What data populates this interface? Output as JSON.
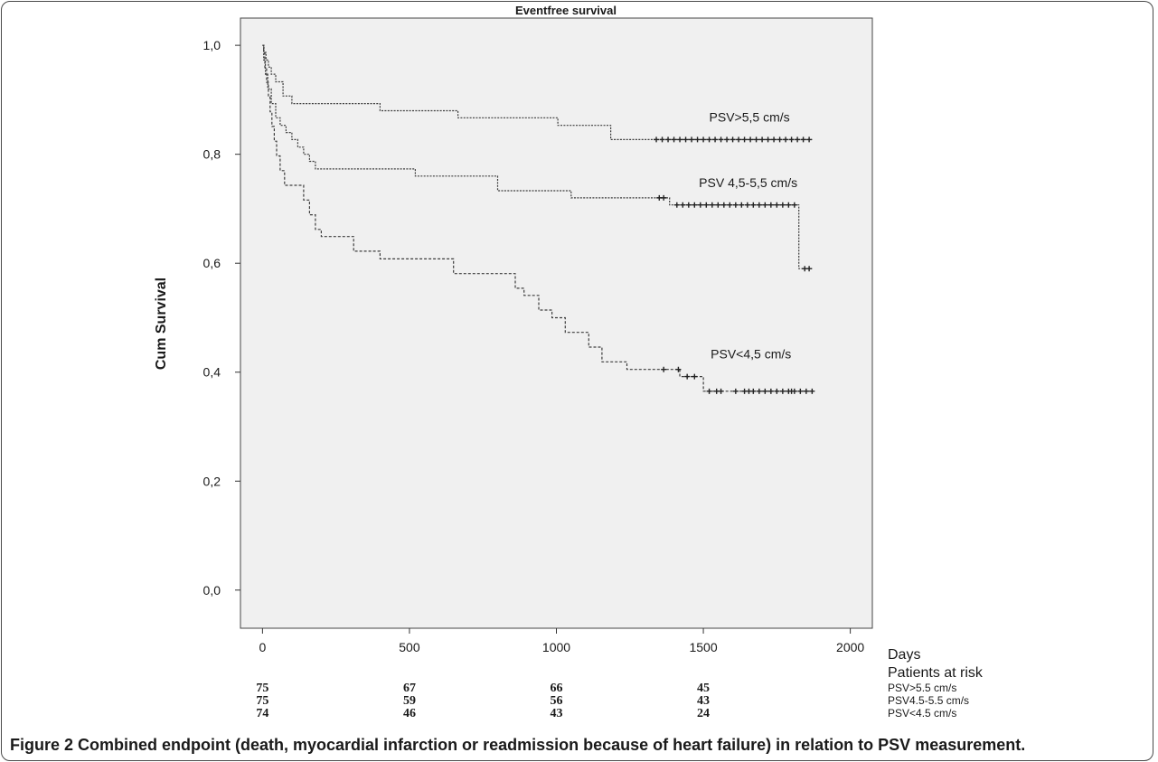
{
  "figure": {
    "label": "Figure 2",
    "caption": "Combined endpoint (death, myocardial infarction or readmission because of heart failure) in relation to PSV measurement."
  },
  "chart_data": {
    "type": "line",
    "title": "Eventfree survival",
    "ylabel": "Cum Survival",
    "xlabel": "Days",
    "xlim": [
      -75,
      2075
    ],
    "ylim": [
      -0.07,
      1.05
    ],
    "xticks": [
      0,
      500,
      1000,
      1500,
      2000
    ],
    "yticks": [
      0.0,
      0.2,
      0.4,
      0.6,
      0.8,
      1.0
    ],
    "ytick_labels": [
      "0,0",
      "0,2",
      "0,4",
      "0,6",
      "0,8",
      "1,0"
    ],
    "grid": false,
    "series": [
      {
        "name": "PSV>5,5 cm/s",
        "steps": [
          [
            0,
            1.0
          ],
          [
            5,
            0.987
          ],
          [
            12,
            0.973
          ],
          [
            20,
            0.96
          ],
          [
            30,
            0.947
          ],
          [
            45,
            0.933
          ],
          [
            70,
            0.907
          ],
          [
            100,
            0.893
          ],
          [
            400,
            0.88
          ],
          [
            665,
            0.867
          ],
          [
            1005,
            0.853
          ],
          [
            1185,
            0.827
          ],
          [
            1870,
            0.827
          ]
        ],
        "censored": [
          1340,
          1360,
          1380,
          1400,
          1420,
          1440,
          1460,
          1480,
          1500,
          1520,
          1540,
          1560,
          1580,
          1600,
          1620,
          1640,
          1660,
          1680,
          1700,
          1720,
          1740,
          1760,
          1780,
          1800,
          1820,
          1840,
          1860
        ]
      },
      {
        "name": "PSV 4,5-5,5 cm/s",
        "steps": [
          [
            0,
            1.0
          ],
          [
            4,
            0.973
          ],
          [
            10,
            0.947
          ],
          [
            18,
            0.92
          ],
          [
            30,
            0.893
          ],
          [
            45,
            0.867
          ],
          [
            60,
            0.853
          ],
          [
            80,
            0.84
          ],
          [
            100,
            0.827
          ],
          [
            120,
            0.813
          ],
          [
            140,
            0.8
          ],
          [
            160,
            0.787
          ],
          [
            180,
            0.773
          ],
          [
            520,
            0.76
          ],
          [
            800,
            0.733
          ],
          [
            1050,
            0.72
          ],
          [
            1385,
            0.707
          ],
          [
            1825,
            0.59
          ],
          [
            1870,
            0.59
          ]
        ],
        "censored": [
          1350,
          1365,
          1410,
          1430,
          1450,
          1470,
          1490,
          1510,
          1530,
          1550,
          1570,
          1590,
          1610,
          1630,
          1650,
          1670,
          1690,
          1710,
          1730,
          1750,
          1770,
          1790,
          1810,
          1845,
          1860
        ]
      },
      {
        "name": "PSV<4,5 cm/s",
        "steps": [
          [
            0,
            1.0
          ],
          [
            4,
            0.986
          ],
          [
            8,
            0.959
          ],
          [
            14,
            0.932
          ],
          [
            20,
            0.905
          ],
          [
            26,
            0.878
          ],
          [
            32,
            0.851
          ],
          [
            40,
            0.824
          ],
          [
            48,
            0.797
          ],
          [
            60,
            0.77
          ],
          [
            75,
            0.743
          ],
          [
            140,
            0.716
          ],
          [
            160,
            0.689
          ],
          [
            180,
            0.662
          ],
          [
            200,
            0.649
          ],
          [
            310,
            0.622
          ],
          [
            400,
            0.608
          ],
          [
            650,
            0.581
          ],
          [
            860,
            0.554
          ],
          [
            890,
            0.541
          ],
          [
            940,
            0.514
          ],
          [
            985,
            0.5
          ],
          [
            1030,
            0.473
          ],
          [
            1110,
            0.446
          ],
          [
            1155,
            0.419
          ],
          [
            1240,
            0.405
          ],
          [
            1420,
            0.392
          ],
          [
            1500,
            0.365
          ],
          [
            1870,
            0.365
          ]
        ],
        "censored": [
          1365,
          1415,
          1445,
          1470,
          1520,
          1545,
          1560,
          1610,
          1640,
          1655,
          1670,
          1690,
          1710,
          1730,
          1750,
          1770,
          1790,
          1800,
          1810,
          1830,
          1850,
          1870
        ]
      }
    ],
    "annotations": [
      {
        "text": "PSV>5,5 cm/s",
        "x": 1520,
        "y": 0.86
      },
      {
        "text": "PSV 4,5-5,5 cm/s",
        "x": 1485,
        "y": 0.74
      },
      {
        "text": "PSV<4,5 cm/s",
        "x": 1525,
        "y": 0.425
      }
    ],
    "risk_table": {
      "header": "Patients at risk",
      "timepoints": [
        0,
        500,
        1000,
        1500
      ],
      "rows": [
        {
          "label": "PSV>5.5 cm/s",
          "values": [
            "75",
            "67",
            "66",
            "45"
          ]
        },
        {
          "label": "PSV4.5-5.5 cm/s",
          "values": [
            "75",
            "59",
            "56",
            "43"
          ]
        },
        {
          "label": "PSV<4.5 cm/s",
          "values": [
            "74",
            "46",
            "43",
            "24"
          ]
        }
      ]
    },
    "colors": {
      "plot_bg": "#f0f0f0",
      "line": "#3c3c3c",
      "axis": "#333333"
    }
  }
}
